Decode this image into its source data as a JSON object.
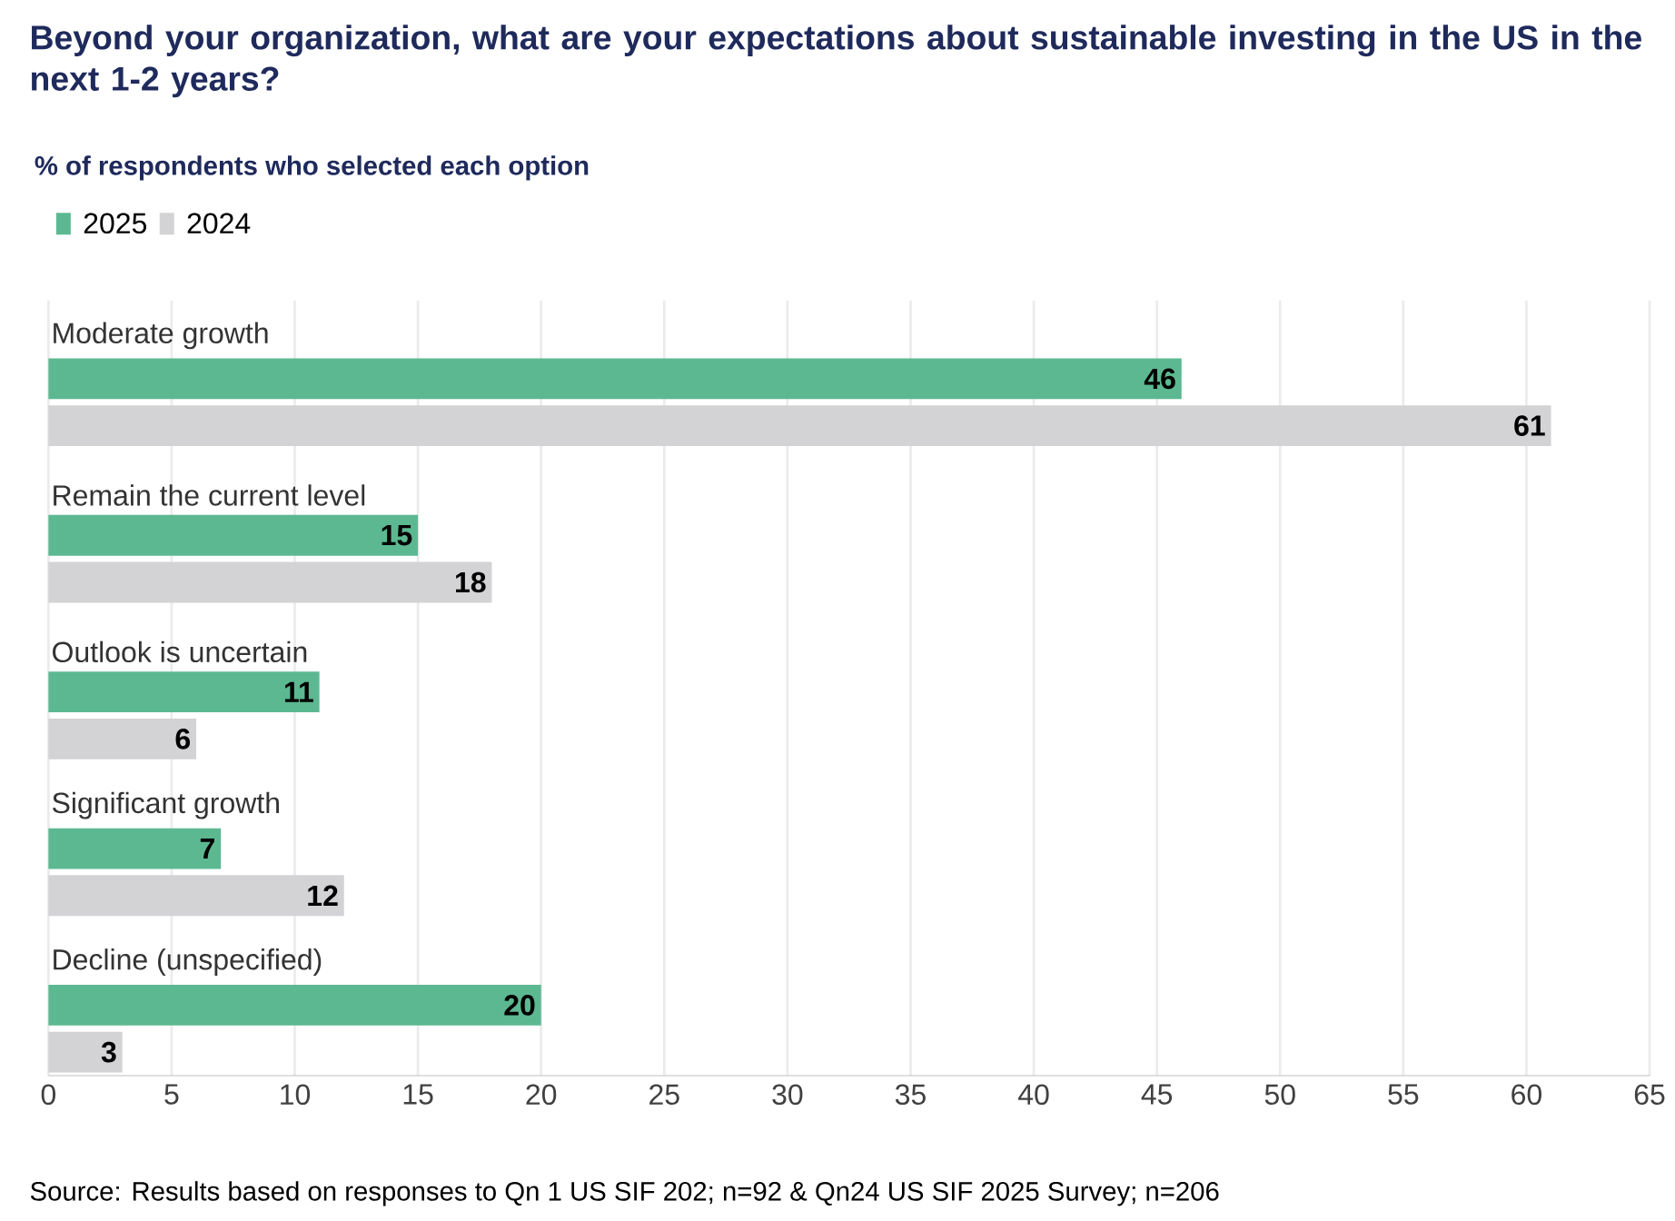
{
  "chart_data": {
    "type": "bar",
    "orientation": "horizontal",
    "title": "Beyond your organization, what are your expectations about sustainable investing in the US in the next 1-2 years?",
    "subtitle": "% of respondents who selected each option",
    "categories": [
      "Moderate growth",
      "Remain the current level",
      "Outlook is uncertain",
      "Significant growth",
      "Decline (unspecified)"
    ],
    "series": [
      {
        "name": "2025",
        "color": "#5cb891",
        "values": [
          46,
          15,
          11,
          7,
          20
        ]
      },
      {
        "name": "2024",
        "color": "#d3d3d6",
        "values": [
          61,
          18,
          6,
          12,
          3
        ]
      }
    ],
    "xlim": [
      0,
      65
    ],
    "xticks": [
      0,
      5,
      10,
      15,
      20,
      25,
      30,
      35,
      40,
      45,
      50,
      55,
      60,
      65
    ],
    "grid": "x",
    "legend": "top left",
    "data_labels": true,
    "annotations": [
      "Source: Results based on responses to Qn 1 US SIF 202; n=92 & Qn24 US SIF 2025 Survey; n=206"
    ]
  }
}
